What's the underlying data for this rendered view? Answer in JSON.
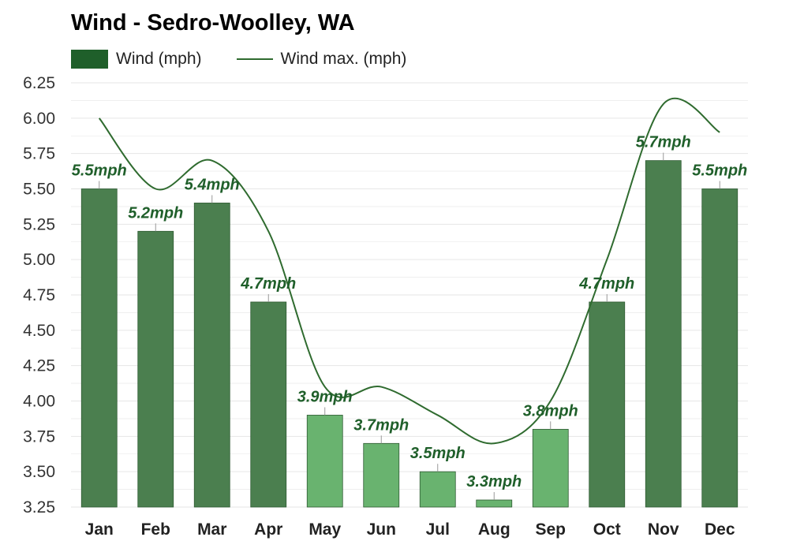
{
  "chart_data": {
    "type": "bar",
    "title": "Wind - Sedro-Woolley, WA",
    "categories": [
      "Jan",
      "Feb",
      "Mar",
      "Apr",
      "May",
      "Jun",
      "Jul",
      "Aug",
      "Sep",
      "Oct",
      "Nov",
      "Dec"
    ],
    "series": [
      {
        "name": "Wind (mph)",
        "type": "bar",
        "values": [
          5.5,
          5.2,
          5.4,
          4.7,
          3.9,
          3.7,
          3.5,
          3.3,
          3.8,
          4.7,
          5.7,
          5.5
        ],
        "data_labels": [
          "5.5mph",
          "5.2mph",
          "5.4mph",
          "4.7mph",
          "3.9mph",
          "3.7mph",
          "3.5mph",
          "3.3mph",
          "3.8mph",
          "4.7mph",
          "5.7mph",
          "5.5mph"
        ]
      },
      {
        "name": "Wind max. (mph)",
        "type": "line",
        "values": [
          6.0,
          5.5,
          5.7,
          5.2,
          4.1,
          4.1,
          3.9,
          3.7,
          4.0,
          5.0,
          6.1,
          5.9
        ]
      }
    ],
    "ylim": [
      3.25,
      6.25
    ],
    "yticks": [
      "6.25",
      "6.00",
      "5.75",
      "5.50",
      "5.25",
      "5.00",
      "4.75",
      "4.50",
      "4.25",
      "4.00",
      "3.75",
      "3.50",
      "3.25"
    ],
    "grid": true,
    "legend_position": "top-left",
    "colors": {
      "bar_dark": "#4b7f4f",
      "bar_light": "#69b36f",
      "bar_stroke": "#2e5a32",
      "line": "#2f6b2f",
      "label": "#1f5f2a",
      "grid": "#e6e6e6"
    }
  }
}
